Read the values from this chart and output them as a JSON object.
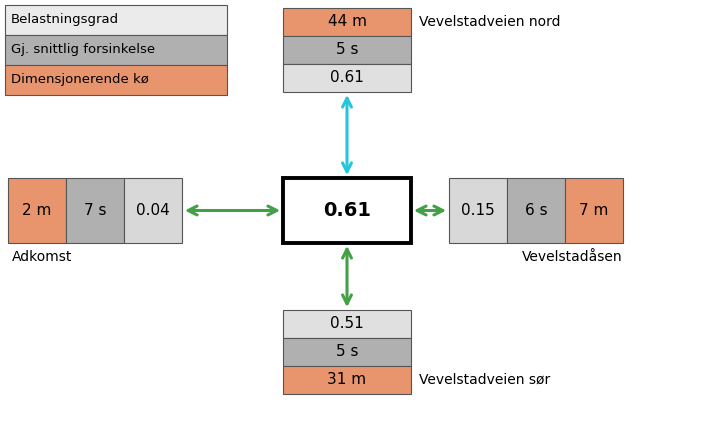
{
  "legend_labels": [
    "Belastningsgrad",
    "Gj. snittlig forsinkelse",
    "Dimensjonerende kø"
  ],
  "legend_colors": [
    "#ebebeb",
    "#b0b0b0",
    "#e8956d"
  ],
  "center_value": "0.61",
  "north_values": [
    "44 m",
    "5 s",
    "0.61"
  ],
  "north_colors": [
    "#e8956d",
    "#b0b0b0",
    "#e0e0e0"
  ],
  "north_label": "Vevelstadveien nord",
  "south_values": [
    "0.51",
    "5 s",
    "31 m"
  ],
  "south_colors": [
    "#e0e0e0",
    "#b0b0b0",
    "#e8956d"
  ],
  "south_label": "Vevelstadveien sør",
  "west_values": [
    "2 m",
    "7 s",
    "0.04"
  ],
  "west_colors": [
    "#e8956d",
    "#b0b0b0",
    "#d8d8d8"
  ],
  "west_label": "Adkomst",
  "east_values": [
    "0.15",
    "6 s",
    "7 m"
  ],
  "east_colors": [
    "#d8d8d8",
    "#b0b0b0",
    "#e8956d"
  ],
  "east_label": "Vevelstadåsen",
  "bg_color": "#ffffff",
  "arrow_color_cyan": "#26c6da",
  "arrow_color_green": "#43a047"
}
